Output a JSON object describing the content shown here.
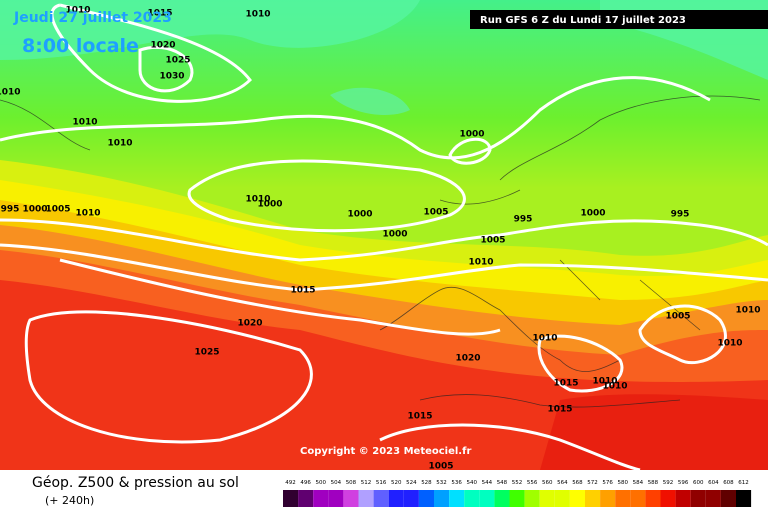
{
  "header": {
    "date": "Jeudi 27 juillet 2023",
    "time": "8:00 locale",
    "run": "Run GFS 6 Z du Lundi 17 juillet 2023"
  },
  "copyright": "Copyright © 2023 Meteociel.fr",
  "footer": {
    "title": "Géop. Z500 & pression au sol",
    "subtitle": "(+ 240h)"
  },
  "isobar_labels": [
    1015,
    1010,
    1010,
    1020,
    1025,
    1030,
    1010,
    1010,
    1010,
    1000,
    1010,
    1000,
    995,
    1000,
    1005,
    1010,
    1000,
    1005,
    995,
    1000,
    995,
    1000,
    1005,
    1010,
    1015,
    1005,
    1010,
    1020,
    1010,
    1010,
    1025,
    1020,
    1015,
    1010,
    1010,
    1015,
    1015,
    1005
  ],
  "scale": {
    "labels": [
      492,
      496,
      500,
      504,
      508,
      512,
      516,
      520,
      524,
      528,
      532,
      536,
      540,
      544,
      548,
      552,
      556,
      560,
      564,
      568,
      572,
      576,
      580,
      584,
      588,
      592,
      596,
      600,
      604,
      608,
      612
    ]
  }
}
